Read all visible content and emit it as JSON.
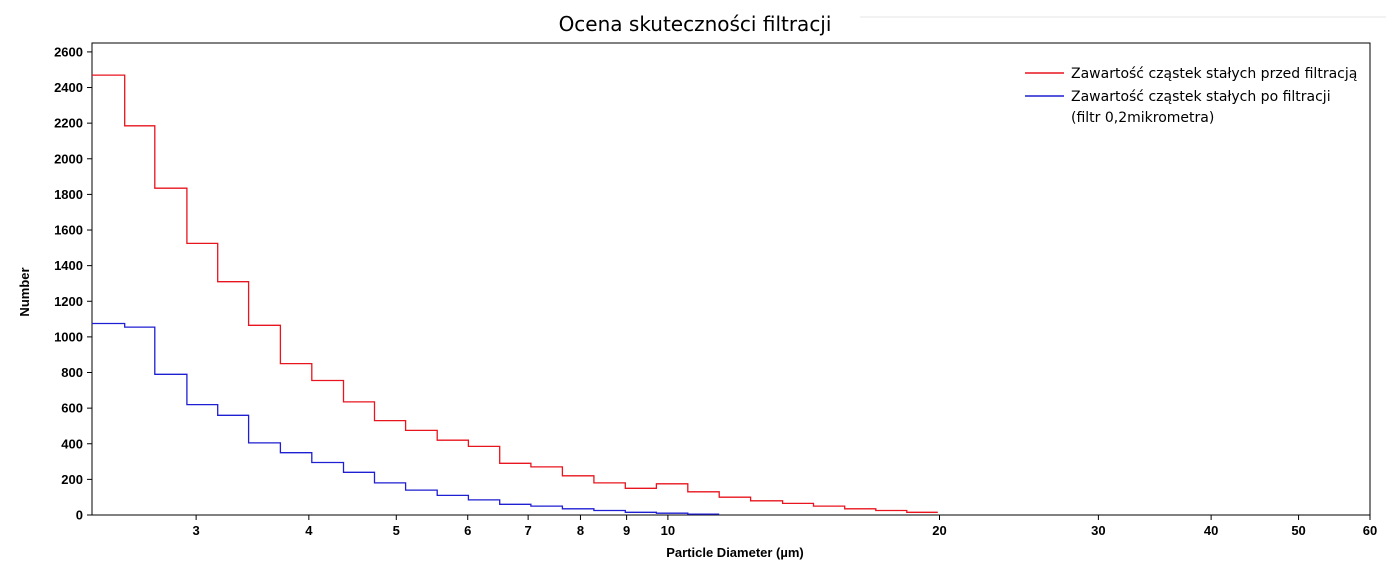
{
  "chart_data": {
    "type": "line",
    "title": "Ocena skuteczności filtracji",
    "xlabel": "Particle Diameter (µm)",
    "ylabel": "Number",
    "x_scale": "log",
    "xlim": [
      2.3,
      60
    ],
    "ylim": [
      0,
      2650
    ],
    "x_ticks": [
      3,
      4,
      5,
      6,
      7,
      8,
      9,
      10,
      20,
      30,
      40,
      50,
      60
    ],
    "y_ticks": [
      0,
      200,
      400,
      600,
      800,
      1000,
      1200,
      1400,
      1600,
      1800,
      2000,
      2200,
      2400,
      2600
    ],
    "grid": false,
    "legend_position": "top-right",
    "series": [
      {
        "name": "Zawartość cząstek stałych przed filtracją",
        "color": "#e8141e",
        "x": [
          2.3,
          2.5,
          2.7,
          2.93,
          3.17,
          3.43,
          3.72,
          4.03,
          4.37,
          4.73,
          5.12,
          5.55,
          6.01,
          6.51,
          7.05,
          7.64,
          8.28,
          8.97,
          9.71,
          10.52,
          11.4,
          12.35,
          13.4,
          14.5,
          15.7,
          17.0,
          18.4
        ],
        "values": [
          2470,
          2185,
          1835,
          1525,
          1310,
          1065,
          850,
          755,
          635,
          530,
          475,
          420,
          385,
          290,
          270,
          220,
          180,
          150,
          175,
          130,
          100,
          80,
          65,
          50,
          35,
          25,
          15
        ]
      },
      {
        "name": "Zawartość cząstek stałych po filtracji",
        "name_line2": "(filtr 0,2mikrometra)",
        "color": "#1e1ed2",
        "x": [
          2.3,
          2.5,
          2.7,
          2.93,
          3.17,
          3.43,
          3.72,
          4.03,
          4.37,
          4.73,
          5.12,
          5.55,
          6.01,
          6.51,
          7.05,
          7.64,
          8.28,
          8.97,
          9.71,
          10.52
        ],
        "values": [
          1075,
          1055,
          790,
          620,
          560,
          405,
          350,
          295,
          240,
          180,
          140,
          110,
          85,
          60,
          50,
          35,
          25,
          15,
          10,
          5
        ]
      }
    ]
  }
}
